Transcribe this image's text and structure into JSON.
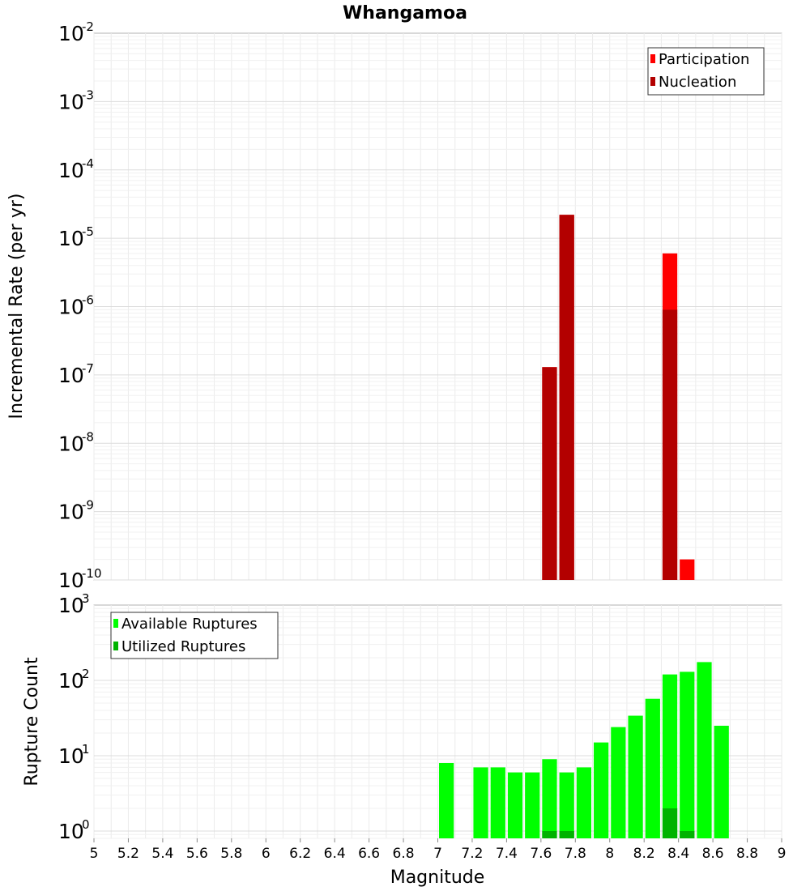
{
  "title": "Whangamoa",
  "xlabel": "Magnitude",
  "x_ticks": [
    "5",
    "5.2",
    "5.4",
    "5.6",
    "5.8",
    "6",
    "6.2",
    "6.4",
    "6.6",
    "6.8",
    "7",
    "7.2",
    "7.4",
    "7.6",
    "7.8",
    "8",
    "8.2",
    "8.4",
    "8.6",
    "8.8",
    "9"
  ],
  "chart_data": [
    {
      "type": "bar",
      "ylabel": "Incremental Rate (per yr)",
      "y_scale": "log",
      "xlim": [
        5,
        9
      ],
      "ylim": [
        1e-10,
        0.01
      ],
      "y_ticks": [
        {
          "base": "10",
          "exp": "-10"
        },
        {
          "base": "10",
          "exp": "-9"
        },
        {
          "base": "10",
          "exp": "-8"
        },
        {
          "base": "10",
          "exp": "-7"
        },
        {
          "base": "10",
          "exp": "-6"
        },
        {
          "base": "10",
          "exp": "-5"
        },
        {
          "base": "10",
          "exp": "-4"
        },
        {
          "base": "10",
          "exp": "-3"
        },
        {
          "base": "10",
          "exp": "-2"
        }
      ],
      "legend_position": "top-right",
      "bin_width": 0.1,
      "series": [
        {
          "name": "Participation",
          "color": "#ff0000",
          "x": [
            7.65,
            7.75,
            8.35,
            8.45
          ],
          "values": [
            1.3e-07,
            2.2e-05,
            6e-06,
            2e-10
          ]
        },
        {
          "name": "Nucleation",
          "color": "#b30000",
          "x": [
            7.65,
            7.75,
            8.35
          ],
          "values": [
            1.3e-07,
            2.2e-05,
            9e-07
          ]
        }
      ],
      "grid": true
    },
    {
      "type": "bar",
      "ylabel": "Rupture Count",
      "y_scale": "log",
      "xlim": [
        5,
        9
      ],
      "ylim": [
        0.8,
        1000
      ],
      "y_ticks": [
        {
          "base": "10",
          "exp": "0",
          "value": 1
        },
        {
          "base": "10",
          "exp": "1",
          "value": 10
        },
        {
          "base": "10",
          "exp": "2",
          "value": 100
        },
        {
          "base": "10",
          "exp": "3",
          "value": 1000
        }
      ],
      "legend_position": "top-left",
      "bin_width": 0.1,
      "series": [
        {
          "name": "Available Ruptures",
          "color": "#00ff00",
          "x": [
            7.05,
            7.25,
            7.35,
            7.45,
            7.55,
            7.65,
            7.75,
            7.85,
            7.95,
            8.05,
            8.15,
            8.25,
            8.35,
            8.45,
            8.55,
            8.65
          ],
          "values": [
            8,
            7,
            7,
            6,
            6,
            9,
            6,
            7,
            15,
            24,
            34,
            57,
            120,
            130,
            175,
            25
          ]
        },
        {
          "name": "Utilized Ruptures",
          "color": "#00b300",
          "x": [
            7.65,
            7.75,
            8.35,
            8.45
          ],
          "values": [
            1,
            1,
            2,
            1
          ]
        }
      ],
      "grid": true
    }
  ]
}
